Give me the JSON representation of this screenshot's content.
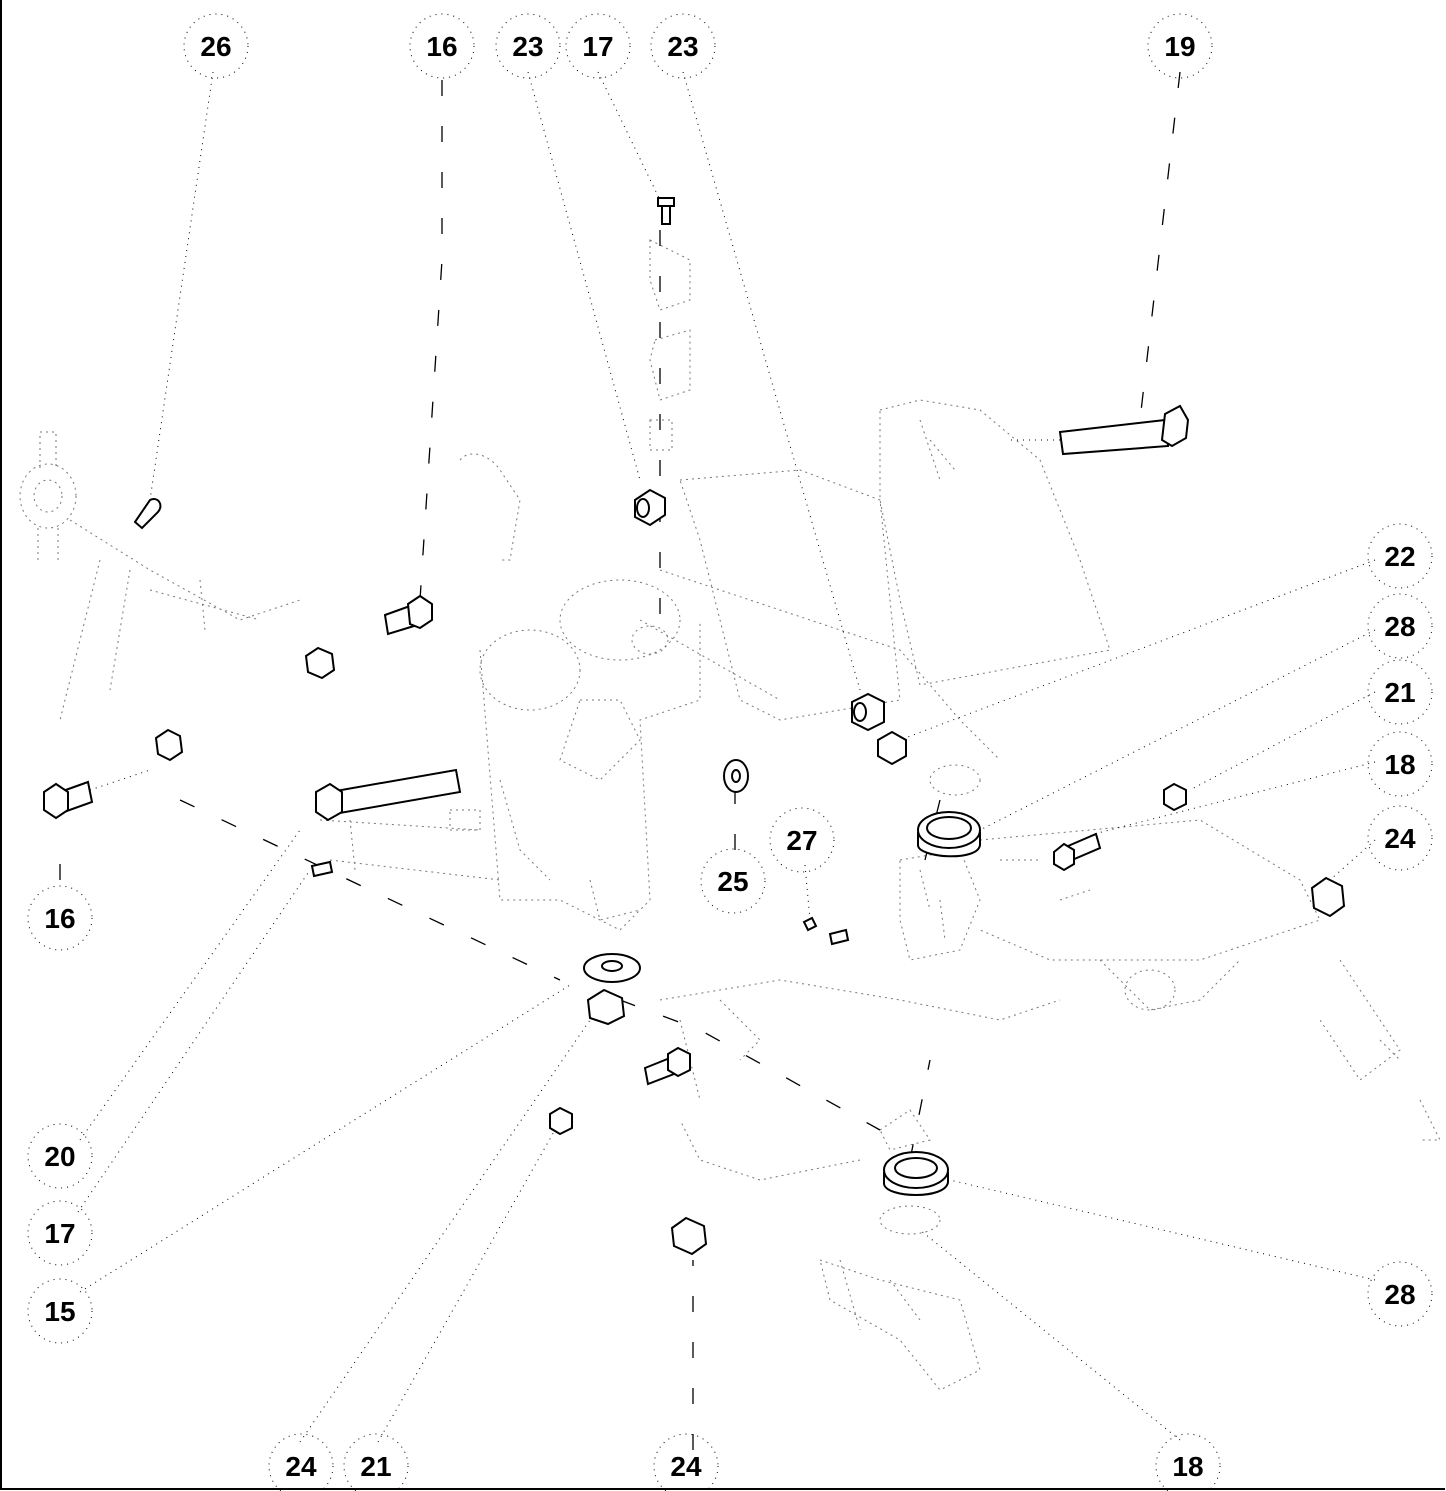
{
  "callouts": [
    {
      "id": "c26",
      "label": "26"
    },
    {
      "id": "c16t",
      "label": "16"
    },
    {
      "id": "c23a",
      "label": "23"
    },
    {
      "id": "c17t",
      "label": "17"
    },
    {
      "id": "c23b",
      "label": "23"
    },
    {
      "id": "c19",
      "label": "19"
    },
    {
      "id": "c22",
      "label": "22"
    },
    {
      "id": "c28r",
      "label": "28"
    },
    {
      "id": "c21r",
      "label": "21"
    },
    {
      "id": "c18r",
      "label": "18"
    },
    {
      "id": "c24r",
      "label": "24"
    },
    {
      "id": "c27",
      "label": "27"
    },
    {
      "id": "c25",
      "label": "25"
    },
    {
      "id": "c16l",
      "label": "16"
    },
    {
      "id": "c20",
      "label": "20"
    },
    {
      "id": "c17l",
      "label": "17"
    },
    {
      "id": "c15",
      "label": "15"
    },
    {
      "id": "c28b",
      "label": "28"
    },
    {
      "id": "c24b1",
      "label": "24"
    },
    {
      "id": "c21b",
      "label": "21"
    },
    {
      "id": "c24b2",
      "label": "24"
    },
    {
      "id": "c18b",
      "label": "18"
    }
  ]
}
